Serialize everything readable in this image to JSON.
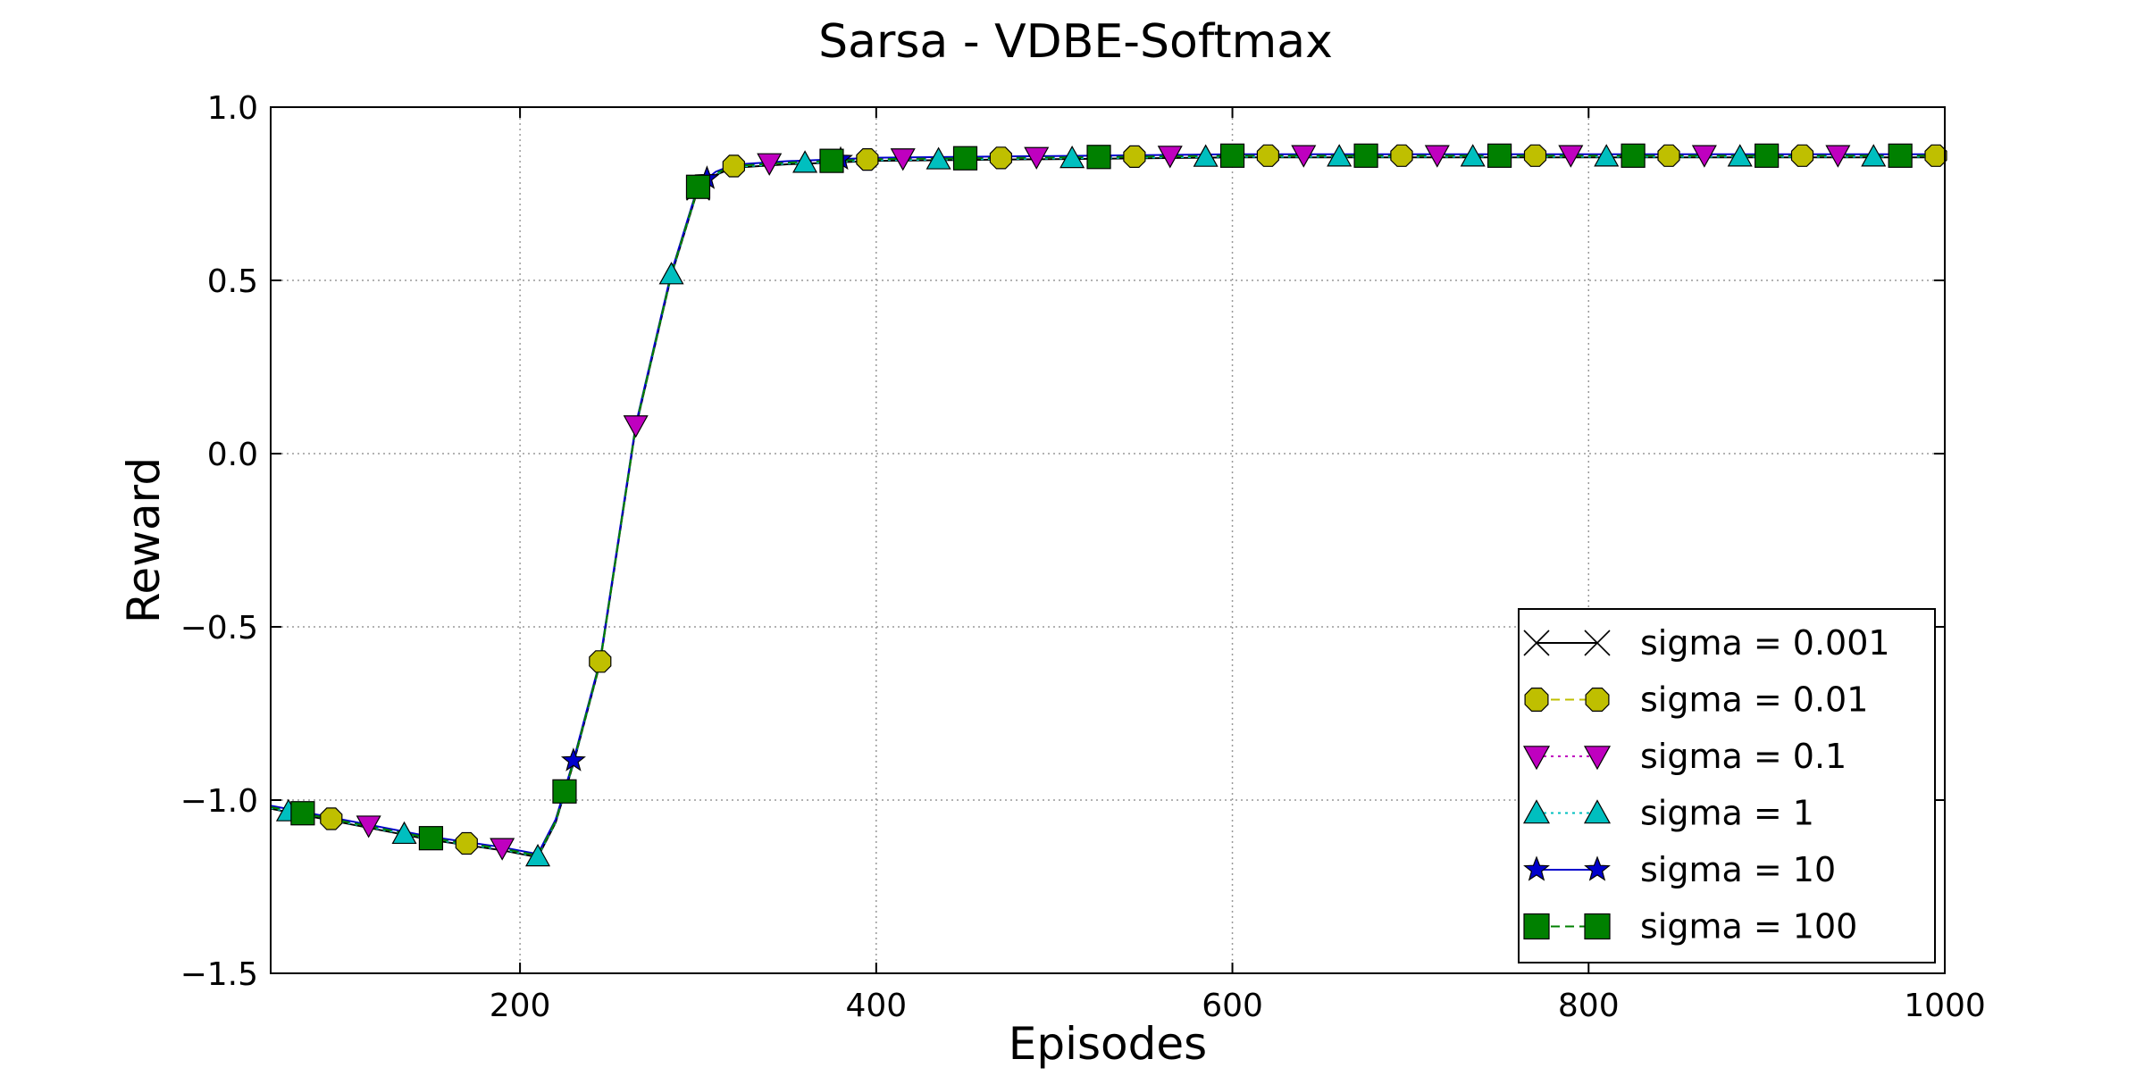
{
  "chart_data": {
    "type": "line",
    "title": "Sarsa - VDBE-Softmax",
    "xlabel": "Episodes",
    "ylabel": "Reward",
    "xlim": [
      60,
      1000
    ],
    "ylim": [
      -1.5,
      1.0
    ],
    "xticks": [
      200,
      400,
      600,
      800,
      1000
    ],
    "yticks": [
      -1.5,
      -1.0,
      -0.5,
      0.0,
      0.5,
      1.0
    ],
    "xtick_labels": [
      "200",
      "400",
      "600",
      "800",
      "1000"
    ],
    "ytick_labels": [
      "−1.5",
      "−1.0",
      "−0.5",
      "0.0",
      "0.5",
      "1.0"
    ],
    "grid": true,
    "legend_position": "lower-right",
    "curve": {
      "x": [
        60,
        100,
        150,
        190,
        210,
        220,
        230,
        245,
        265,
        285,
        300,
        310,
        320,
        350,
        400,
        500,
        600,
        700,
        800,
        900,
        1000
      ],
      "y": [
        -1.02,
        -1.06,
        -1.11,
        -1.14,
        -1.16,
        -1.06,
        -0.89,
        -0.6,
        0.08,
        0.52,
        0.77,
        0.81,
        0.83,
        0.84,
        0.85,
        0.855,
        0.86,
        0.86,
        0.86,
        0.86,
        0.86
      ]
    },
    "series": [
      {
        "name": "sigma = 0.001",
        "color": "#000000",
        "marker": "x",
        "linestyle": "solid",
        "offset": -0.005,
        "markers_x": [
          300
        ]
      },
      {
        "name": "sigma = 0.01",
        "color": "#bfbf00",
        "marker": "octagon",
        "linestyle": "dashed",
        "offset": 0.0,
        "markers_x": [
          94,
          170,
          245,
          320,
          395,
          470,
          545,
          620,
          695,
          770,
          845,
          920,
          995
        ]
      },
      {
        "name": "sigma = 0.1",
        "color": "#bf00bf",
        "marker": "triangle-down",
        "linestyle": "dotted",
        "offset": 0.002,
        "markers_x": [
          115,
          190,
          265,
          340,
          415,
          490,
          565,
          640,
          715,
          790,
          865,
          940
        ]
      },
      {
        "name": "sigma = 1",
        "color": "#00bfbf",
        "marker": "triangle-up",
        "linestyle": "dotted",
        "offset": -0.003,
        "markers_x": [
          70,
          135,
          210,
          285,
          360,
          435,
          510,
          585,
          660,
          735,
          810,
          885,
          960
        ]
      },
      {
        "name": "sigma = 10",
        "color": "#0000cc",
        "marker": "star",
        "linestyle": "solid",
        "offset": 0.004,
        "markers_x": [
          230,
          305,
          380
        ]
      },
      {
        "name": "sigma = 100",
        "color": "#008000",
        "marker": "square",
        "linestyle": "dashed",
        "offset": 0.0,
        "markers_x": [
          78,
          150,
          225,
          300,
          375,
          450,
          525,
          600,
          675,
          750,
          825,
          900,
          975
        ]
      }
    ]
  }
}
